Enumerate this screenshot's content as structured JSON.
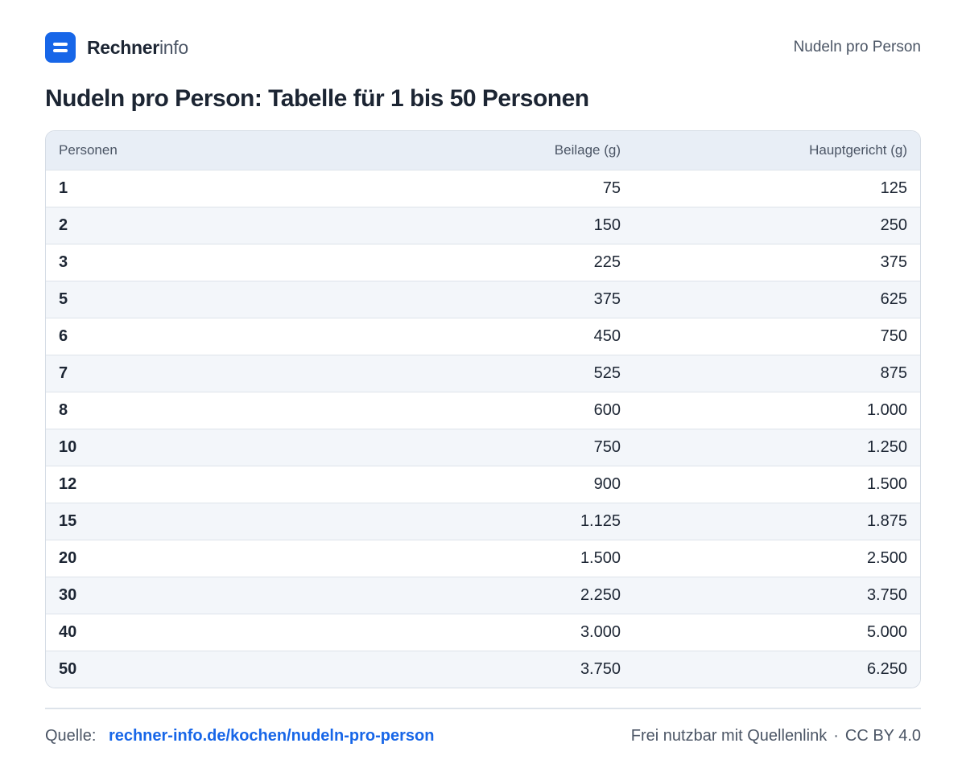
{
  "header": {
    "brand_bold": "Rechner",
    "brand_light": "info",
    "right_text": "Nudeln pro Person"
  },
  "title": "Nudeln pro Person: Tabelle für 1 bis 50 Personen",
  "table": {
    "headers": [
      "Personen",
      "Beilage (g)",
      "Hauptgericht (g)"
    ],
    "rows": [
      [
        "1",
        "75",
        "125"
      ],
      [
        "2",
        "150",
        "250"
      ],
      [
        "3",
        "225",
        "375"
      ],
      [
        "5",
        "375",
        "625"
      ],
      [
        "6",
        "450",
        "750"
      ],
      [
        "7",
        "525",
        "875"
      ],
      [
        "8",
        "600",
        "1.000"
      ],
      [
        "10",
        "750",
        "1.250"
      ],
      [
        "12",
        "900",
        "1.500"
      ],
      [
        "15",
        "1.125",
        "1.875"
      ],
      [
        "20",
        "1.500",
        "2.500"
      ],
      [
        "30",
        "2.250",
        "3.750"
      ],
      [
        "40",
        "3.000",
        "5.000"
      ],
      [
        "50",
        "3.750",
        "6.250"
      ]
    ]
  },
  "footer": {
    "source_label": "Quelle:",
    "source_link": "rechner-info.de/kochen/nudeln-pro-person",
    "license_text": "Frei nutzbar mit Quellenlink",
    "separator": "·",
    "license": "CC BY 4.0"
  },
  "colors": {
    "brand": "#1766e8",
    "text": "#1c2533",
    "muted": "#4b5565",
    "header_bg": "#e8eef6",
    "stripe": "#f3f6fa"
  }
}
